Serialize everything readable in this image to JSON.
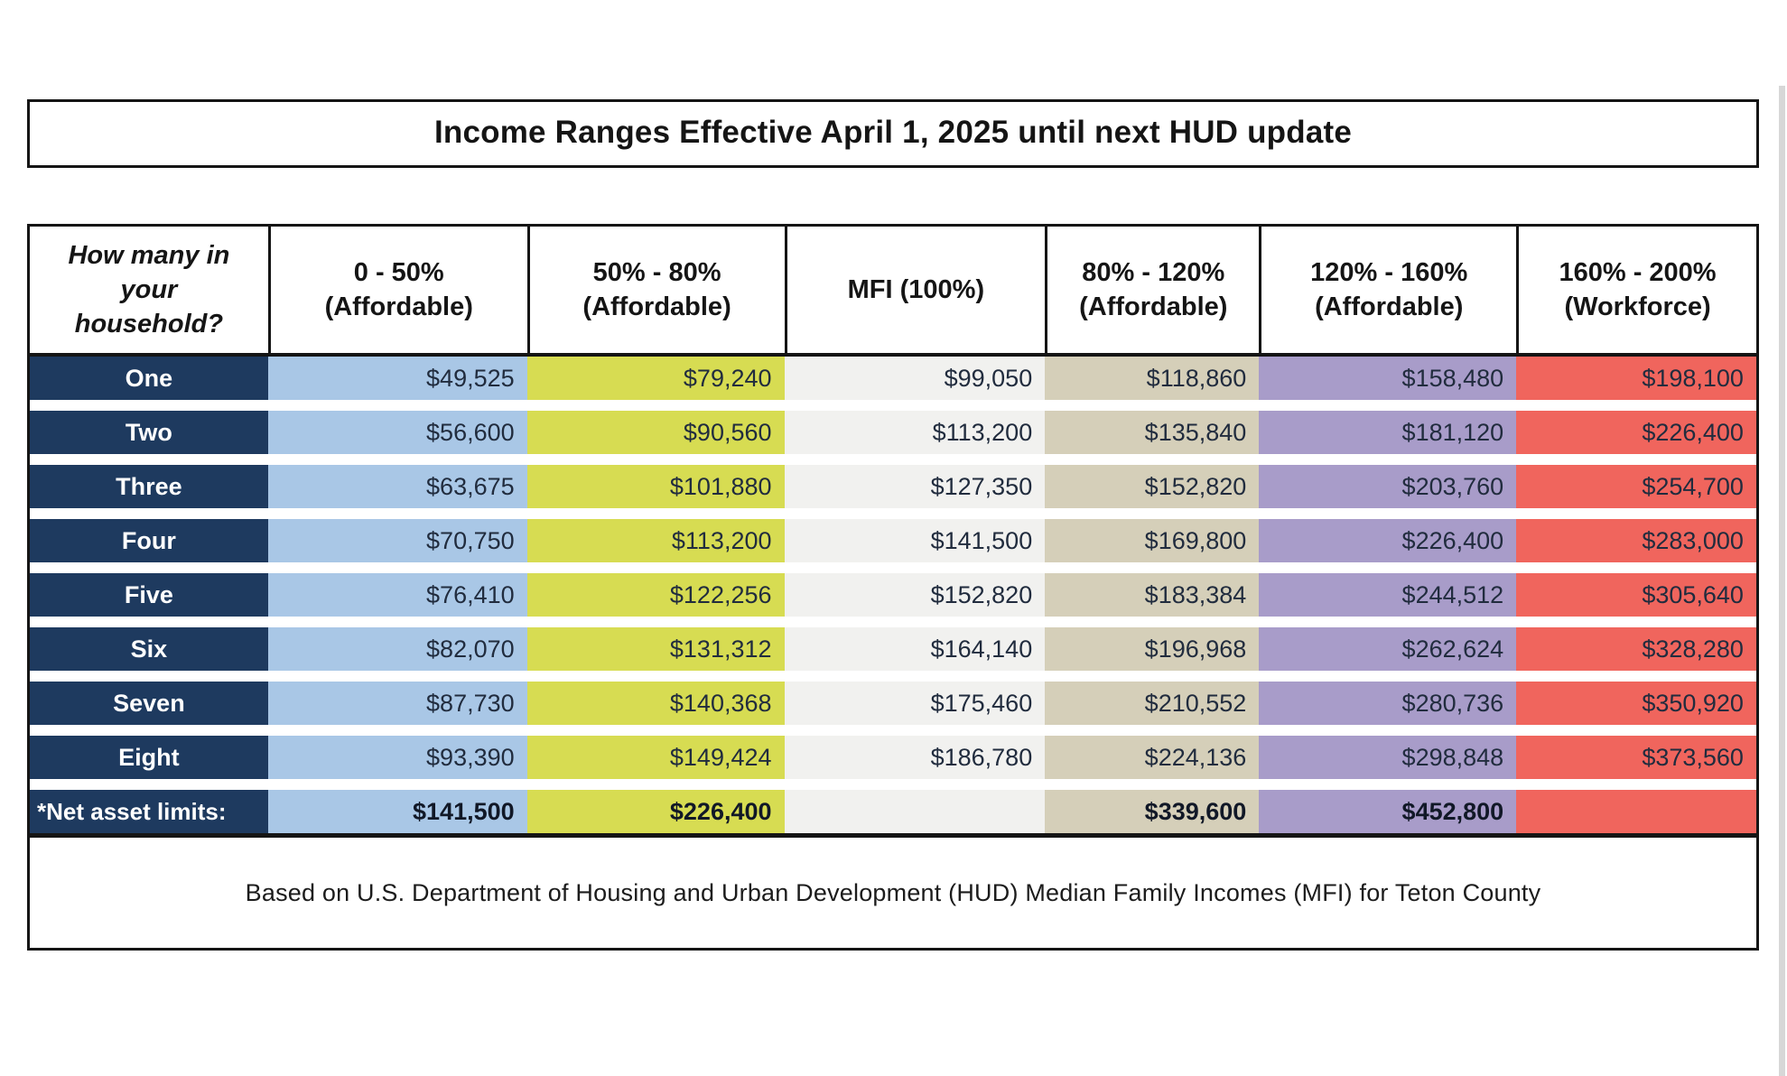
{
  "page": {
    "title": "Income Ranges Effective April 1, 2025 until next HUD update",
    "footnote": "Based on U.S. Department of Housing and Urban Development (HUD) Median Family Incomes (MFI) for Teton County"
  },
  "colors": {
    "label_column_bg": "#1e3a5f",
    "label_text": "#ffffff",
    "col_0_50_bg": "#a9c7e6",
    "col_50_80_bg": "#d7dc52",
    "col_mfi_bg": "#f1f1ef",
    "col_80_120_bg": "#d5cfb9",
    "col_120_160_bg": "#a89cc9",
    "col_160_200_bg": "#f0655d",
    "value_text": "#212c3e",
    "border": "#151515"
  },
  "table": {
    "header": {
      "household": "How many in\nyour\nhousehold?",
      "columns": [
        {
          "id": "0-50",
          "label": "0 - 50%\n(Affordable)"
        },
        {
          "id": "50-80",
          "label": "50% - 80%\n(Affordable)"
        },
        {
          "id": "mfi",
          "label": "MFI (100%)"
        },
        {
          "id": "80-120",
          "label": "80% - 120%\n(Affordable)"
        },
        {
          "id": "120-160",
          "label": "120% - 160%\n(Affordable)"
        },
        {
          "id": "160-200",
          "label": "160% - 200%\n(Workforce)"
        }
      ]
    },
    "rows": [
      {
        "label": "One",
        "values": [
          "$49,525",
          "$79,240",
          "$99,050",
          "$118,860",
          "$158,480",
          "$198,100"
        ],
        "net": false
      },
      {
        "label": "Two",
        "values": [
          "$56,600",
          "$90,560",
          "$113,200",
          "$135,840",
          "$181,120",
          "$226,400"
        ],
        "net": false
      },
      {
        "label": "Three",
        "values": [
          "$63,675",
          "$101,880",
          "$127,350",
          "$152,820",
          "$203,760",
          "$254,700"
        ],
        "net": false
      },
      {
        "label": "Four",
        "values": [
          "$70,750",
          "$113,200",
          "$141,500",
          "$169,800",
          "$226,400",
          "$283,000"
        ],
        "net": false
      },
      {
        "label": "Five",
        "values": [
          "$76,410",
          "$122,256",
          "$152,820",
          "$183,384",
          "$244,512",
          "$305,640"
        ],
        "net": false
      },
      {
        "label": "Six",
        "values": [
          "$82,070",
          "$131,312",
          "$164,140",
          "$196,968",
          "$262,624",
          "$328,280"
        ],
        "net": false
      },
      {
        "label": "Seven",
        "values": [
          "$87,730",
          "$140,368",
          "$175,460",
          "$210,552",
          "$280,736",
          "$350,920"
        ],
        "net": false
      },
      {
        "label": "Eight",
        "values": [
          "$93,390",
          "$149,424",
          "$186,780",
          "$224,136",
          "$298,848",
          "$373,560"
        ],
        "net": false
      },
      {
        "label": "*Net asset limits:",
        "values": [
          "$141,500",
          "$226,400",
          "",
          "$339,600",
          "$452,800",
          ""
        ],
        "net": true
      }
    ]
  }
}
